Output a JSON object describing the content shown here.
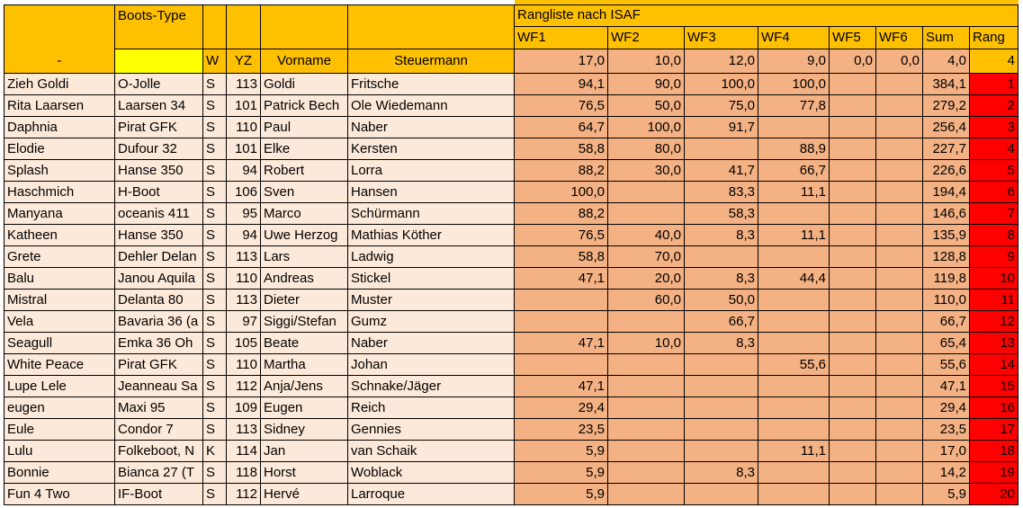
{
  "sheet_title": "Rangliste nach ISAF",
  "headers": {
    "boat_type": "Boots-Type",
    "dash": "-",
    "w": "W",
    "yz": "YZ",
    "vorname": "Vorname",
    "steuermann": "Steuermann",
    "wf": [
      "WF1",
      "WF2",
      "WF3",
      "WF4",
      "WF5",
      "WF6"
    ],
    "sum": "Sum",
    "rang": "Rang"
  },
  "max_row": {
    "wf": [
      "17,0",
      "10,0",
      "12,0",
      "9,0",
      "0,0",
      "0,0"
    ],
    "sum": "4,0",
    "rang": "4"
  },
  "rows": [
    {
      "boat": "Zieh Goldi",
      "type": "O-Jolle",
      "w": "S",
      "yz": "113",
      "vorname": "Goldi",
      "steuermann": "Fritsche",
      "wf": [
        "94,1",
        "90,0",
        "100,0",
        "100,0",
        "",
        ""
      ],
      "sum": "384,1",
      "rang": "1"
    },
    {
      "boat": "Rita Laarsen",
      "type": "Laarsen 34",
      "w": "S",
      "yz": "101",
      "vorname": "Patrick Bech",
      "steuermann": "Ole Wiedemann",
      "wf": [
        "76,5",
        "50,0",
        "75,0",
        "77,8",
        "",
        ""
      ],
      "sum": "279,2",
      "rang": "2"
    },
    {
      "boat": "Daphnia",
      "type": "Pirat GFK",
      "w": "S",
      "yz": "110",
      "vorname": "Paul",
      "steuermann": "Naber",
      "wf": [
        "64,7",
        "100,0",
        "91,7",
        "",
        "",
        ""
      ],
      "sum": "256,4",
      "rang": "3"
    },
    {
      "boat": "Elodie",
      "type": "Dufour 32",
      "w": "S",
      "yz": "101",
      "vorname": "Elke",
      "steuermann": "Kersten",
      "wf": [
        "58,8",
        "80,0",
        "",
        "88,9",
        "",
        ""
      ],
      "sum": "227,7",
      "rang": "4"
    },
    {
      "boat": "Splash",
      "type": "Hanse 350",
      "w": "S",
      "yz": "94",
      "vorname": "Robert",
      "steuermann": "Lorra",
      "wf": [
        "88,2",
        "30,0",
        "41,7",
        "66,7",
        "",
        ""
      ],
      "sum": "226,6",
      "rang": "5"
    },
    {
      "boat": "Haschmich",
      "type": "H-Boot",
      "w": "S",
      "yz": "106",
      "vorname": "Sven",
      "steuermann": "Hansen",
      "wf": [
        "100,0",
        "",
        "83,3",
        "11,1",
        "",
        ""
      ],
      "sum": "194,4",
      "rang": "6"
    },
    {
      "boat": "Manyana",
      "type": "oceanis 411",
      "w": "S",
      "yz": "95",
      "vorname": "Marco",
      "steuermann": "Schürmann",
      "wf": [
        "88,2",
        "",
        "58,3",
        "",
        "",
        ""
      ],
      "sum": "146,6",
      "rang": "7"
    },
    {
      "boat": "Katheen",
      "type": "Hanse 350",
      "w": "S",
      "yz": "94",
      "vorname": "Uwe Herzog",
      "steuermann": "Mathias Köther",
      "wf": [
        "76,5",
        "40,0",
        "8,3",
        "11,1",
        "",
        ""
      ],
      "sum": "135,9",
      "rang": "8"
    },
    {
      "boat": "Grete",
      "type": "Dehler Delan",
      "w": "S",
      "yz": "113",
      "vorname": "Lars",
      "steuermann": "Ladwig",
      "wf": [
        "58,8",
        "70,0",
        "",
        "",
        "",
        ""
      ],
      "sum": "128,8",
      "rang": "9"
    },
    {
      "boat": "Balu",
      "type": "Janou Aquila",
      "w": "S",
      "yz": "110",
      "vorname": "Andreas",
      "steuermann": "Stickel",
      "wf": [
        "47,1",
        "20,0",
        "8,3",
        "44,4",
        "",
        ""
      ],
      "sum": "119,8",
      "rang": "10"
    },
    {
      "boat": "Mistral",
      "type": "Delanta 80",
      "w": "S",
      "yz": "113",
      "vorname": "Dieter",
      "steuermann": "Muster",
      "wf": [
        "",
        "60,0",
        "50,0",
        "",
        "",
        ""
      ],
      "sum": "110,0",
      "rang": "11"
    },
    {
      "boat": "Vela",
      "type": "Bavaria 36 (a",
      "w": "S",
      "yz": "97",
      "vorname": "Siggi/Stefan",
      "steuermann": "Gumz",
      "wf": [
        "",
        "",
        "66,7",
        "",
        "",
        ""
      ],
      "sum": "66,7",
      "rang": "12"
    },
    {
      "boat": "Seagull",
      "type": "Emka 36 Oh",
      "w": "S",
      "yz": "105",
      "vorname": "Beate",
      "steuermann": "Naber",
      "wf": [
        "47,1",
        "10,0",
        "8,3",
        "",
        "",
        ""
      ],
      "sum": "65,4",
      "rang": "13"
    },
    {
      "boat": "White Peace",
      "type": "Pirat GFK",
      "w": "S",
      "yz": "110",
      "vorname": "Martha",
      "steuermann": "Johan",
      "wf": [
        "",
        "",
        "",
        "55,6",
        "",
        ""
      ],
      "sum": "55,6",
      "rang": "14"
    },
    {
      "boat": "Lupe Lele",
      "type": "Jeanneau Sa",
      "w": "S",
      "yz": "112",
      "vorname": "Anja/Jens",
      "steuermann": "Schnake/Jäger",
      "wf": [
        "47,1",
        "",
        "",
        "",
        "",
        ""
      ],
      "sum": "47,1",
      "rang": "15"
    },
    {
      "boat": "eugen",
      "type": "Maxi 95",
      "w": "S",
      "yz": "109",
      "vorname": "Eugen",
      "steuermann": "Reich",
      "wf": [
        "29,4",
        "",
        "",
        "",
        "",
        ""
      ],
      "sum": "29,4",
      "rang": "16"
    },
    {
      "boat": "Eule",
      "type": "Condor 7",
      "w": "S",
      "yz": "113",
      "vorname": "Sidney",
      "steuermann": "Gennies",
      "wf": [
        "23,5",
        "",
        "",
        "",
        "",
        ""
      ],
      "sum": "23,5",
      "rang": "17"
    },
    {
      "boat": "Lulu",
      "type": "Folkeboot, N",
      "w": "K",
      "yz": "114",
      "vorname": "Jan",
      "steuermann": "van Schaik",
      "wf": [
        "5,9",
        "",
        "",
        "11,1",
        "",
        ""
      ],
      "sum": "17,0",
      "rang": "18"
    },
    {
      "boat": "Bonnie",
      "type": "Bianca 27  (T",
      "w": "S",
      "yz": "118",
      "vorname": "Horst",
      "steuermann": "Woblack",
      "wf": [
        "5,9",
        "",
        "8,3",
        "",
        "",
        ""
      ],
      "sum": "14,2",
      "rang": "19"
    },
    {
      "boat": "Fun 4 Two",
      "type": "IF-Boot",
      "w": "S",
      "yz": "112",
      "vorname": "Hervé",
      "steuermann": "Larroque",
      "wf": [
        "5,9",
        "",
        "",
        "",
        "",
        ""
      ],
      "sum": "5,9",
      "rang": "20"
    }
  ]
}
